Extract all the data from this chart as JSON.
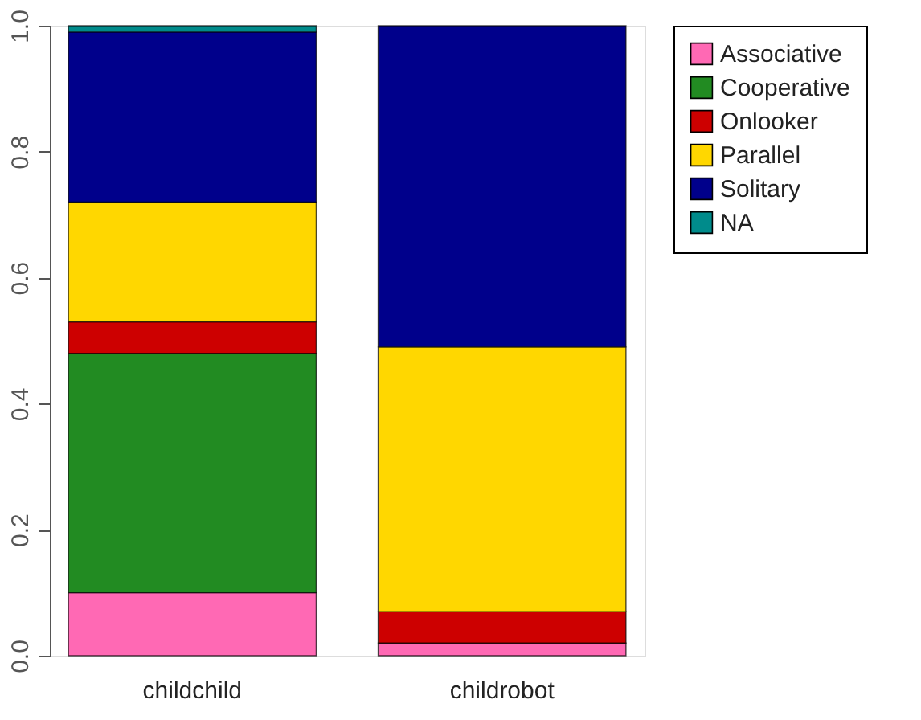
{
  "chart_data": {
    "type": "bar",
    "stacked": true,
    "categories": [
      "childchild",
      "childrobot"
    ],
    "series": [
      {
        "name": "Associative",
        "color": "#ff69b4",
        "values": [
          0.1,
          0.02
        ]
      },
      {
        "name": "Cooperative",
        "color": "#228b22",
        "values": [
          0.38,
          null
        ]
      },
      {
        "name": "Onlooker",
        "color": "#cd0000",
        "values": [
          0.05,
          0.05
        ]
      },
      {
        "name": "Parallel",
        "color": "#ffd700",
        "values": [
          0.19,
          0.42
        ]
      },
      {
        "name": "Solitary",
        "color": "#00008b",
        "values": [
          0.27,
          0.51
        ]
      },
      {
        "name": "NA",
        "color": "#008b8b",
        "values": [
          0.01,
          null
        ]
      }
    ],
    "ylim": [
      0,
      1
    ],
    "yticks": [
      {
        "value": 0,
        "label": "0.0"
      },
      {
        "value": 0.2,
        "label": "0.2"
      },
      {
        "value": 0.4,
        "label": "0.4"
      },
      {
        "value": 0.6,
        "label": "0.6"
      },
      {
        "value": 0.8,
        "label": "0.8"
      },
      {
        "value": 1,
        "label": "1.0"
      }
    ],
    "grid": false,
    "legend": "right"
  }
}
